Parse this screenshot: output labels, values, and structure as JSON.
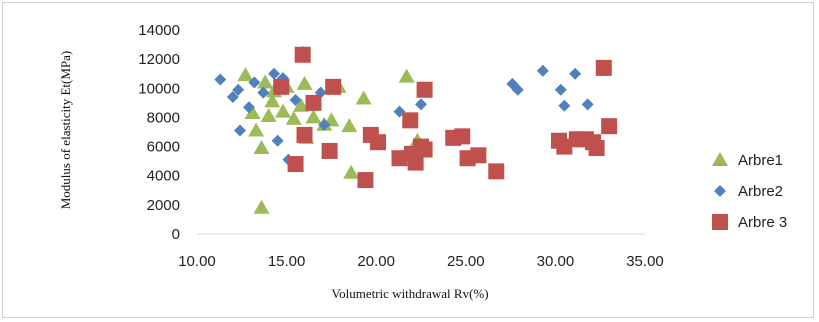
{
  "chart_data": {
    "type": "scatter",
    "title": "",
    "xlabel": "Volumetric withdrawal Rv(%)",
    "ylabel": "Modulus of elasticity Et(MPa)",
    "xlim": [
      10,
      35
    ],
    "ylim": [
      0,
      14000
    ],
    "x_ticks": [
      "10.00",
      "15.00",
      "20.00",
      "25.00",
      "30.00",
      "35.00"
    ],
    "y_ticks": [
      "0",
      "2000",
      "4000",
      "6000",
      "8000",
      "10000",
      "12000",
      "14000"
    ],
    "grid": false,
    "legend_position": "right",
    "series": [
      {
        "name": "Arbre1",
        "marker": "triangle",
        "color": "#9bbb59",
        "points": [
          [
            12.7,
            10900
          ],
          [
            13.8,
            10400
          ],
          [
            14.3,
            9800
          ],
          [
            15.0,
            10100
          ],
          [
            16.0,
            10300
          ],
          [
            13.1,
            8300
          ],
          [
            14.0,
            8100
          ],
          [
            14.8,
            8400
          ],
          [
            15.4,
            7900
          ],
          [
            16.5,
            8000
          ],
          [
            17.5,
            7800
          ],
          [
            16.1,
            6600
          ],
          [
            13.3,
            7100
          ],
          [
            13.6,
            5900
          ],
          [
            15.8,
            8800
          ],
          [
            17.9,
            10100
          ],
          [
            19.3,
            9300
          ],
          [
            18.5,
            7400
          ],
          [
            18.6,
            4200
          ],
          [
            21.7,
            10800
          ],
          [
            22.3,
            6400
          ],
          [
            13.6,
            1800
          ],
          [
            14.2,
            9100
          ],
          [
            17.1,
            7500
          ]
        ]
      },
      {
        "name": "Arbre2",
        "marker": "diamond",
        "color": "#4f81bd",
        "points": [
          [
            11.3,
            10600
          ],
          [
            12.3,
            9900
          ],
          [
            12.0,
            9400
          ],
          [
            12.9,
            8700
          ],
          [
            13.2,
            10400
          ],
          [
            13.7,
            9700
          ],
          [
            14.3,
            11000
          ],
          [
            14.8,
            10700
          ],
          [
            15.5,
            9200
          ],
          [
            15.9,
            12500
          ],
          [
            16.4,
            9000
          ],
          [
            16.9,
            9700
          ],
          [
            12.4,
            7100
          ],
          [
            14.5,
            6400
          ],
          [
            15.1,
            5100
          ],
          [
            17.1,
            7500
          ],
          [
            21.3,
            8400
          ],
          [
            22.5,
            8900
          ],
          [
            27.6,
            10300
          ],
          [
            27.9,
            9900
          ],
          [
            29.3,
            11200
          ],
          [
            30.3,
            9900
          ],
          [
            30.5,
            8800
          ],
          [
            31.1,
            11000
          ],
          [
            31.8,
            8900
          ]
        ]
      },
      {
        "name": "Arbre 3",
        "marker": "square",
        "color": "#c0504d",
        "points": [
          [
            15.9,
            12300
          ],
          [
            14.7,
            10100
          ],
          [
            16.5,
            9000
          ],
          [
            17.6,
            10100
          ],
          [
            16.0,
            6800
          ],
          [
            17.4,
            5700
          ],
          [
            15.5,
            4800
          ],
          [
            19.7,
            6800
          ],
          [
            20.1,
            6300
          ],
          [
            19.4,
            3700
          ],
          [
            21.3,
            5200
          ],
          [
            21.9,
            7800
          ],
          [
            22.0,
            5500
          ],
          [
            22.2,
            4900
          ],
          [
            22.5,
            6000
          ],
          [
            22.7,
            9900
          ],
          [
            22.7,
            5800
          ],
          [
            24.3,
            6600
          ],
          [
            24.8,
            6700
          ],
          [
            25.1,
            5200
          ],
          [
            25.7,
            5400
          ],
          [
            26.7,
            4300
          ],
          [
            30.2,
            6400
          ],
          [
            30.5,
            6000
          ],
          [
            31.2,
            6500
          ],
          [
            31.7,
            6500
          ],
          [
            32.1,
            6300
          ],
          [
            32.3,
            5900
          ],
          [
            32.7,
            11400
          ],
          [
            33.0,
            7400
          ]
        ]
      }
    ]
  }
}
